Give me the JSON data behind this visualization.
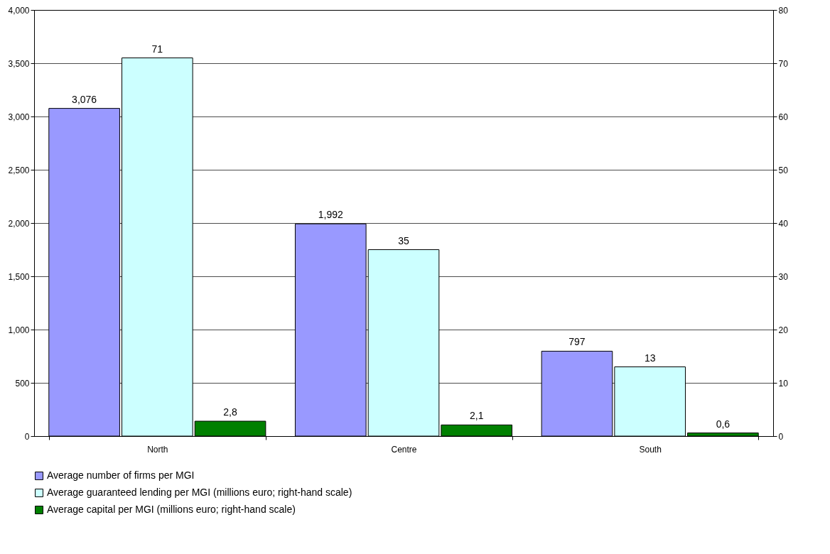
{
  "chart_data": {
    "type": "bar",
    "categories": [
      "North",
      "Centre",
      "South"
    ],
    "series": [
      {
        "name": "Average number of firms per MGI",
        "color": "#9999ff",
        "values": [
          3076,
          1992,
          797
        ],
        "value_labels": [
          "3,076",
          "1,992",
          "797"
        ]
      },
      {
        "name": "Average guaranteed lending per MGI (millions euro; right-hand scale)",
        "color": "#ccffff",
        "axis": "y2",
        "values": [
          71,
          35,
          13
        ],
        "value_labels": [
          "71",
          "35",
          "13"
        ]
      },
      {
        "name": "Average capital per MGI  (millions euro; right-hand scale)",
        "color": "#008000",
        "axis": "y2",
        "values": [
          2.8,
          2.1,
          0.6
        ],
        "value_labels": [
          "2,8",
          "2,1",
          "0,6"
        ]
      }
    ],
    "ylim": [
      0,
      4000
    ],
    "yticks": [
      0,
      500,
      {
        "value": 1000,
        "label": "1,000"
      },
      {
        "value": 1500,
        "label": "1,500"
      },
      {
        "value": 2000,
        "label": "2,000"
      },
      {
        "value": 2500,
        "label": "2,500"
      },
      {
        "value": 3000,
        "label": "3,000"
      },
      {
        "value": 3500,
        "label": "3,500"
      },
      {
        "value": 4000,
        "label": "4,000"
      }
    ],
    "y2lim": [
      0,
      80
    ],
    "y2ticks": [
      0,
      10,
      20,
      30,
      40,
      50,
      60,
      70,
      80
    ],
    "grid": "y",
    "legend": "bottom"
  }
}
